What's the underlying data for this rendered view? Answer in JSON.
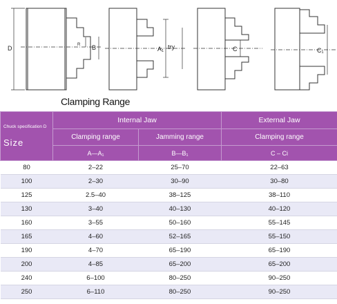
{
  "diagram": {
    "labels": {
      "d": "D",
      "r": "R",
      "b": "B",
      "a1": "A₁",
      "try": "try",
      "c": "C",
      "c1": "C₁"
    }
  },
  "caption": "Clamping Range",
  "table": {
    "header": {
      "size_note": "Chuck specification D",
      "size_label": "Size",
      "internal_jaw": "Internal Jaw",
      "external_jaw": "External Jaw",
      "clamping_range": "Clamping range",
      "jamming_range": "Jamming range",
      "external_clamping_range": "Clamping range",
      "sym_a": "A—A₁",
      "sym_b": "B—B₁",
      "sym_c": "C – Ci"
    },
    "rows": [
      {
        "size": "80",
        "clamp": "2–22",
        "jam": "25–70",
        "ext": "22–63"
      },
      {
        "size": "100",
        "clamp": "2–30",
        "jam": "30–90",
        "ext": "30–80"
      },
      {
        "size": "125",
        "clamp": "2.5–40",
        "jam": "38–125",
        "ext": "38–110"
      },
      {
        "size": "130",
        "clamp": "3–40",
        "jam": "40–130",
        "ext": "40–120"
      },
      {
        "size": "160",
        "clamp": "3–55",
        "jam": "50–160",
        "ext": "55–145"
      },
      {
        "size": "165",
        "clamp": "4–60",
        "jam": "52–165",
        "ext": "55–150"
      },
      {
        "size": "190",
        "clamp": "4–70",
        "jam": "65–190",
        "ext": "65–190"
      },
      {
        "size": "200",
        "clamp": "4–85",
        "jam": "65–200",
        "ext": "65–200"
      },
      {
        "size": "240",
        "clamp": "6–100",
        "jam": "80–250",
        "ext": "90–250"
      },
      {
        "size": "250",
        "clamp": "6–110",
        "jam": "80–250",
        "ext": "90–250"
      }
    ]
  }
}
